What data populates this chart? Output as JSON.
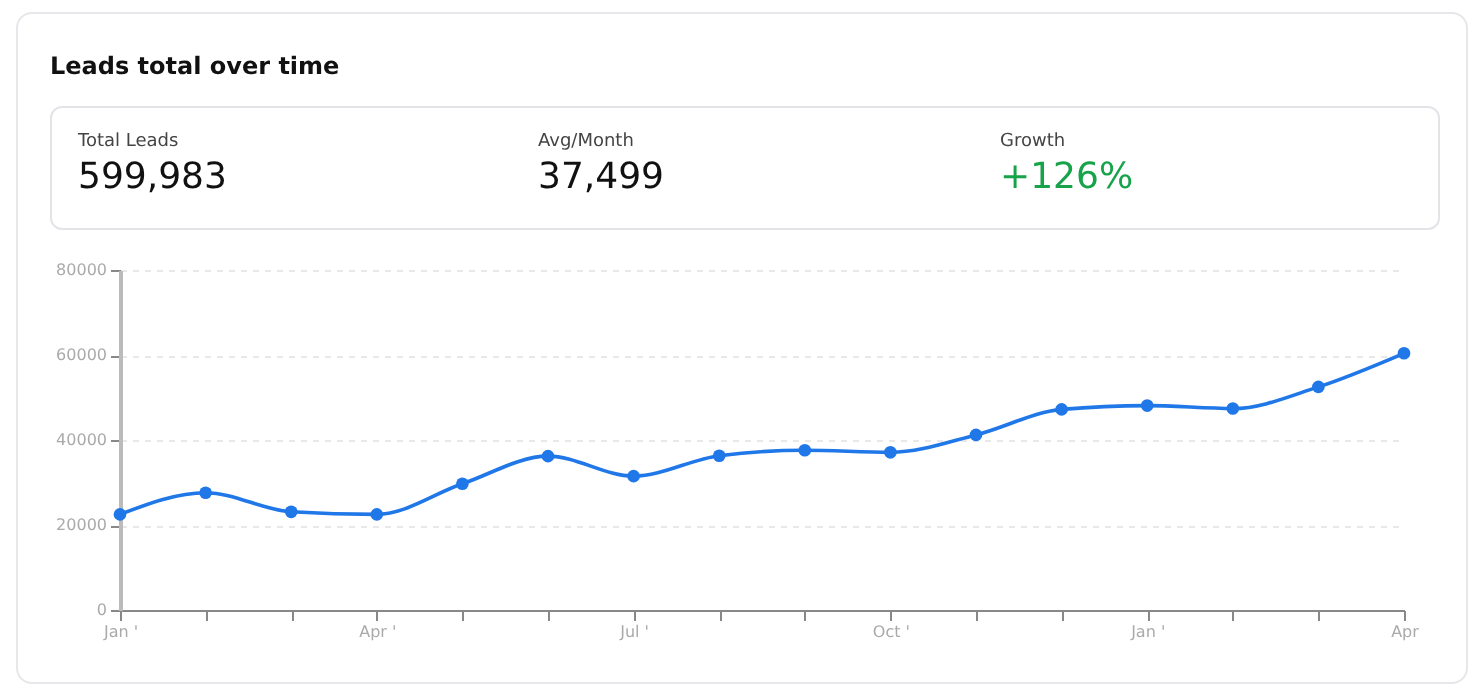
{
  "chart_data": [
    {
      "type": "other",
      "title": "Leads total over time",
      "annotations": [
        "Total Leads",
        "599,983",
        "Avg/Month",
        "37,499",
        "Growth",
        "+126%"
      ]
    },
    {
      "type": "line",
      "categories": [
        "Jan '",
        null,
        null,
        "Apr '",
        null,
        null,
        "Jul '",
        null,
        null,
        "Oct '",
        null,
        null,
        "Jan '",
        null,
        null,
        "Apr"
      ],
      "series": [
        {
          "color": "#1f77e8",
          "values": [
            22500,
            27600,
            23100,
            22500,
            29700,
            36200,
            31500,
            36300,
            37600,
            37100,
            41200,
            47200,
            48100,
            47400,
            52500,
            60400
          ]
        }
      ],
      "ylim": [
        0,
        80000
      ],
      "yticks": [
        0,
        20000,
        40000,
        60000,
        80000
      ],
      "grid": "y",
      "marker": "circle",
      "line_style": "solid"
    }
  ]
}
